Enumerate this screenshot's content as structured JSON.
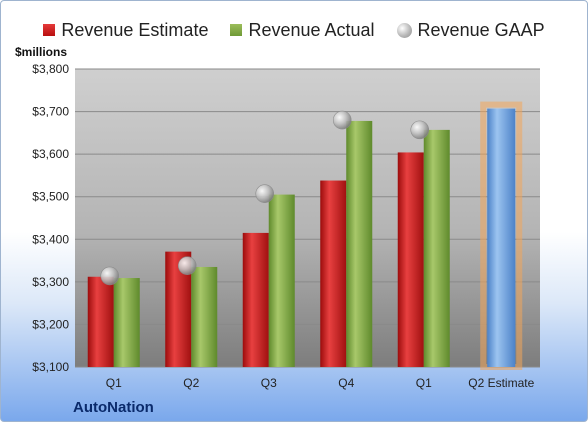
{
  "chart_data": {
    "type": "bar",
    "ylabel": "$millions",
    "ylim": [
      3100,
      3800
    ],
    "yticks": [
      3100,
      3200,
      3300,
      3400,
      3500,
      3600,
      3700,
      3800
    ],
    "ytick_labels": [
      "$3,100",
      "$3,200",
      "$3,300",
      "$3,400",
      "$3,500",
      "$3,600",
      "$3,700",
      "$3,800"
    ],
    "categories": [
      "Q1",
      "Q2",
      "Q3",
      "Q4",
      "Q1",
      "Q2 Estimate"
    ],
    "legend_position": "top",
    "grid": true,
    "series": [
      {
        "name": "Revenue Estimate",
        "kind": "bar",
        "color": "#c81e1e",
        "values": [
          3312,
          3371,
          3415,
          3538,
          3604,
          null
        ]
      },
      {
        "name": "Revenue Actual",
        "kind": "bar",
        "color": "#7fa844",
        "values": [
          3309,
          3335,
          3505,
          3678,
          3657,
          null
        ]
      },
      {
        "name": "Revenue GAAP",
        "kind": "marker",
        "color": "#b0b0b0",
        "values": [
          3314,
          3338,
          3507,
          3680,
          3657,
          null
        ]
      },
      {
        "name": "Q2 Estimate",
        "kind": "bar",
        "color": "#6a9fdc",
        "highlight": "#f2a65a",
        "values": [
          null,
          null,
          null,
          null,
          null,
          3707
        ]
      }
    ]
  },
  "footer": {
    "company": "AutoNation"
  }
}
